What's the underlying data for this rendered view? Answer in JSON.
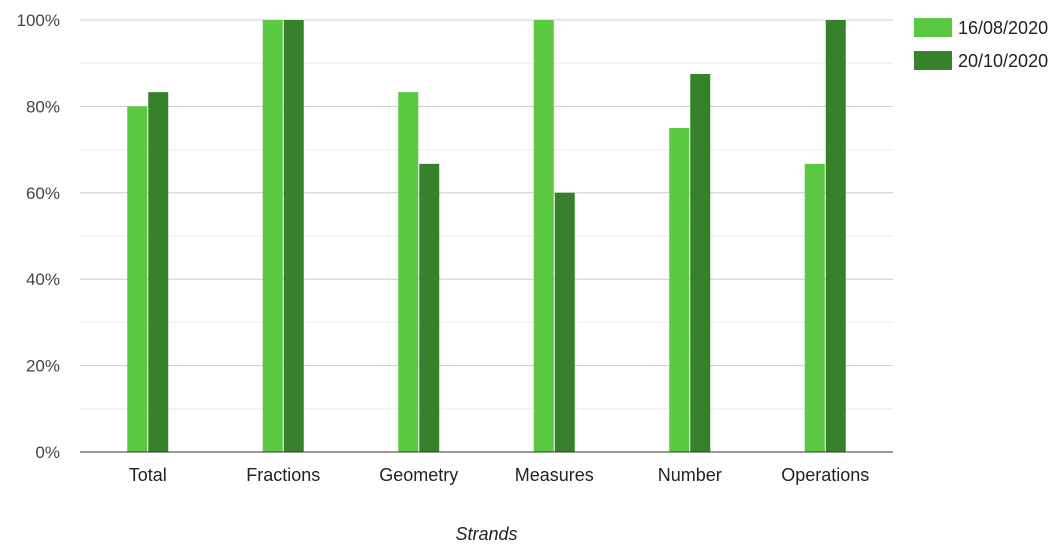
{
  "chart_data": {
    "type": "bar",
    "categories": [
      "Total",
      "Fractions",
      "Geometry",
      "Measures",
      "Number",
      "Operations"
    ],
    "series": [
      {
        "name": "16/08/2020",
        "values": [
          80,
          100,
          83.3,
          100,
          75,
          66.7
        ],
        "color": "#5ac840"
      },
      {
        "name": "20/10/2020",
        "values": [
          83.3,
          100,
          66.7,
          60,
          87.5,
          100
        ],
        "color": "#37802c"
      }
    ],
    "xlabel": "Strands",
    "ylabel": "",
    "ylim": [
      0,
      100
    ],
    "yticks": [
      "0%",
      "20%",
      "40%",
      "60%",
      "80%",
      "100%"
    ],
    "grid": true,
    "minor_grid": true,
    "legend_position": "top-right"
  }
}
